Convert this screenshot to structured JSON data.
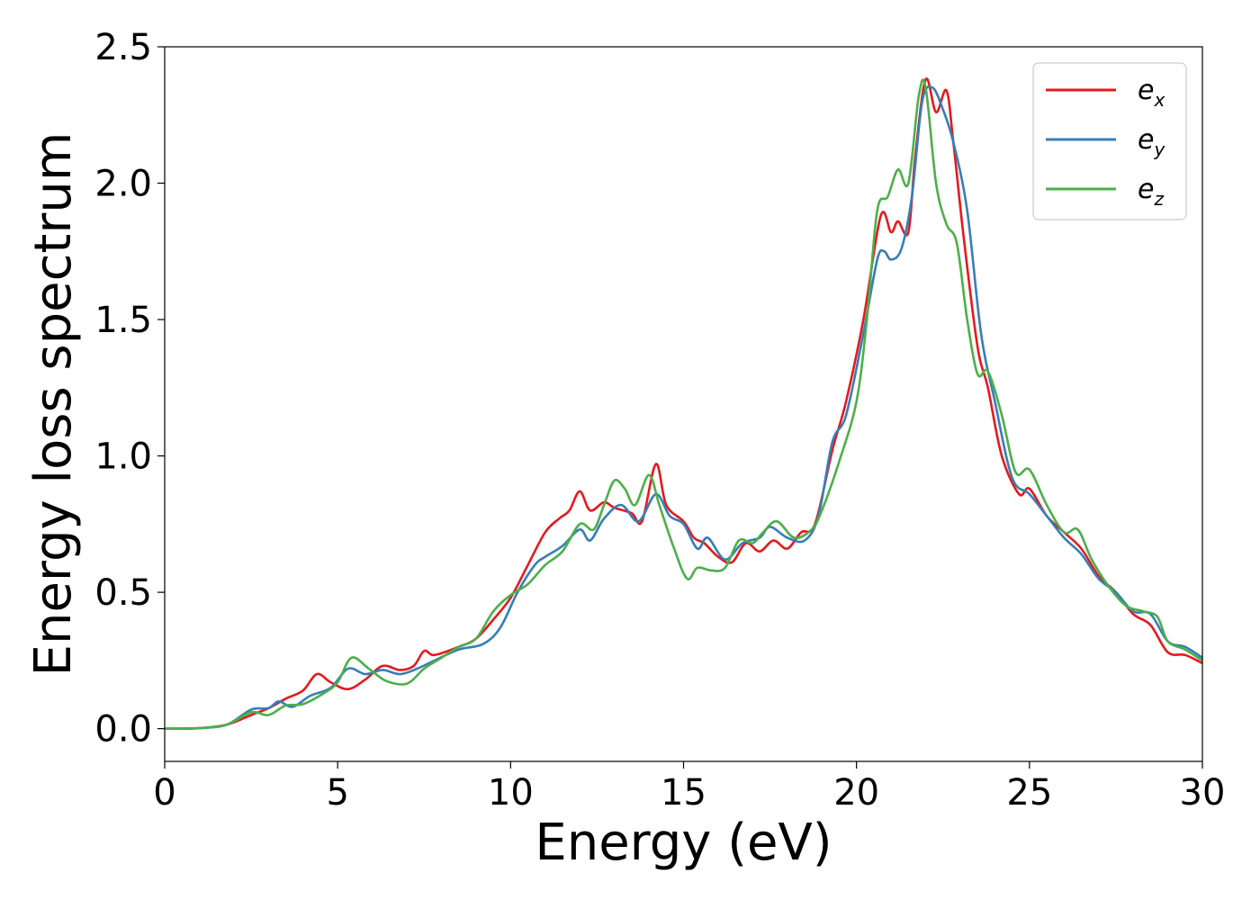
{
  "chart_data": {
    "type": "line",
    "xlabel": "Energy (eV)",
    "ylabel": "Energy loss spectrum",
    "xlim": [
      0,
      30
    ],
    "ylim": [
      -0.12,
      2.5
    ],
    "xticks": [
      0,
      5,
      10,
      15,
      20,
      25,
      30
    ],
    "xtick_labels": [
      "0",
      "5",
      "10",
      "15",
      "20",
      "25",
      "30"
    ],
    "yticks": [
      0.0,
      0.5,
      1.0,
      1.5,
      2.0,
      2.5
    ],
    "ytick_labels": [
      "0.0",
      "0.5",
      "1.0",
      "1.5",
      "2.0",
      "2.5"
    ],
    "grid": false,
    "legend_position": "top-right",
    "series": [
      {
        "name": "e_x",
        "legend_base": "e",
        "legend_sub": "x",
        "color": "#e41a1c",
        "points": [
          [
            0,
            0
          ],
          [
            1,
            0.002
          ],
          [
            1.8,
            0.015
          ],
          [
            2.5,
            0.05
          ],
          [
            3,
            0.075
          ],
          [
            3.5,
            0.11
          ],
          [
            4,
            0.14
          ],
          [
            4.4,
            0.2
          ],
          [
            4.8,
            0.17
          ],
          [
            5.3,
            0.145
          ],
          [
            5.8,
            0.18
          ],
          [
            6.3,
            0.23
          ],
          [
            6.8,
            0.215
          ],
          [
            7.2,
            0.23
          ],
          [
            7.5,
            0.285
          ],
          [
            7.8,
            0.27
          ],
          [
            8.5,
            0.3
          ],
          [
            9,
            0.33
          ],
          [
            9.5,
            0.4
          ],
          [
            10,
            0.48
          ],
          [
            10.5,
            0.6
          ],
          [
            11,
            0.72
          ],
          [
            11.4,
            0.77
          ],
          [
            11.7,
            0.8
          ],
          [
            12,
            0.87
          ],
          [
            12.3,
            0.8
          ],
          [
            12.7,
            0.83
          ],
          [
            13,
            0.81
          ],
          [
            13.5,
            0.79
          ],
          [
            13.8,
            0.76
          ],
          [
            14.2,
            0.97
          ],
          [
            14.5,
            0.82
          ],
          [
            15,
            0.76
          ],
          [
            15.3,
            0.7
          ],
          [
            15.6,
            0.68
          ],
          [
            16,
            0.63
          ],
          [
            16.4,
            0.61
          ],
          [
            16.8,
            0.68
          ],
          [
            17.2,
            0.65
          ],
          [
            17.6,
            0.69
          ],
          [
            18,
            0.66
          ],
          [
            18.4,
            0.72
          ],
          [
            18.8,
            0.75
          ],
          [
            19.3,
            1.02
          ],
          [
            19.7,
            1.2
          ],
          [
            20.2,
            1.5
          ],
          [
            20.7,
            1.88
          ],
          [
            21,
            1.82
          ],
          [
            21.2,
            1.86
          ],
          [
            21.5,
            1.82
          ],
          [
            21.7,
            2.1
          ],
          [
            22,
            2.38
          ],
          [
            22.3,
            2.26
          ],
          [
            22.6,
            2.34
          ],
          [
            22.8,
            2.15
          ],
          [
            23.1,
            1.8
          ],
          [
            23.5,
            1.4
          ],
          [
            23.8,
            1.25
          ],
          [
            24.2,
            1.0
          ],
          [
            24.7,
            0.86
          ],
          [
            25,
            0.88
          ],
          [
            25.5,
            0.78
          ],
          [
            26,
            0.72
          ],
          [
            26.5,
            0.66
          ],
          [
            27,
            0.56
          ],
          [
            27.5,
            0.5
          ],
          [
            28,
            0.42
          ],
          [
            28.5,
            0.38
          ],
          [
            29,
            0.28
          ],
          [
            29.5,
            0.27
          ],
          [
            30,
            0.24
          ]
        ]
      },
      {
        "name": "e_y",
        "legend_base": "e",
        "legend_sub": "y",
        "color": "#377eb8",
        "points": [
          [
            0,
            0
          ],
          [
            1,
            0.002
          ],
          [
            1.8,
            0.015
          ],
          [
            2.5,
            0.07
          ],
          [
            3,
            0.075
          ],
          [
            3.3,
            0.1
          ],
          [
            3.7,
            0.08
          ],
          [
            4.2,
            0.12
          ],
          [
            4.8,
            0.15
          ],
          [
            5.3,
            0.22
          ],
          [
            5.8,
            0.2
          ],
          [
            6.3,
            0.215
          ],
          [
            6.8,
            0.2
          ],
          [
            7.3,
            0.22
          ],
          [
            7.8,
            0.25
          ],
          [
            8.5,
            0.29
          ],
          [
            9.2,
            0.31
          ],
          [
            9.7,
            0.37
          ],
          [
            10.2,
            0.5
          ],
          [
            10.7,
            0.6
          ],
          [
            11,
            0.63
          ],
          [
            11.5,
            0.67
          ],
          [
            12,
            0.73
          ],
          [
            12.3,
            0.69
          ],
          [
            12.7,
            0.77
          ],
          [
            13.2,
            0.82
          ],
          [
            13.7,
            0.76
          ],
          [
            14.2,
            0.86
          ],
          [
            14.6,
            0.78
          ],
          [
            15,
            0.75
          ],
          [
            15.4,
            0.66
          ],
          [
            15.7,
            0.7
          ],
          [
            16.2,
            0.62
          ],
          [
            16.7,
            0.68
          ],
          [
            17.2,
            0.7
          ],
          [
            17.5,
            0.74
          ],
          [
            18,
            0.7
          ],
          [
            18.5,
            0.69
          ],
          [
            18.9,
            0.78
          ],
          [
            19.3,
            1.05
          ],
          [
            19.7,
            1.15
          ],
          [
            20.2,
            1.45
          ],
          [
            20.6,
            1.72
          ],
          [
            20.8,
            1.75
          ],
          [
            21,
            1.72
          ],
          [
            21.3,
            1.76
          ],
          [
            21.6,
            1.95
          ],
          [
            21.9,
            2.3
          ],
          [
            22.2,
            2.35
          ],
          [
            22.5,
            2.27
          ],
          [
            22.8,
            2.15
          ],
          [
            23.2,
            1.9
          ],
          [
            23.6,
            1.45
          ],
          [
            24,
            1.2
          ],
          [
            24.5,
            0.92
          ],
          [
            25,
            0.86
          ],
          [
            25.5,
            0.78
          ],
          [
            26,
            0.7
          ],
          [
            26.5,
            0.64
          ],
          [
            27,
            0.55
          ],
          [
            27.5,
            0.5
          ],
          [
            28,
            0.43
          ],
          [
            28.5,
            0.42
          ],
          [
            29,
            0.32
          ],
          [
            29.5,
            0.3
          ],
          [
            30,
            0.26
          ]
        ]
      },
      {
        "name": "e_z",
        "legend_base": "e",
        "legend_sub": "z",
        "color": "#4daf4a",
        "points": [
          [
            0,
            0
          ],
          [
            1,
            0.002
          ],
          [
            1.8,
            0.015
          ],
          [
            2.5,
            0.06
          ],
          [
            3,
            0.05
          ],
          [
            3.5,
            0.085
          ],
          [
            4,
            0.09
          ],
          [
            4.6,
            0.13
          ],
          [
            5,
            0.17
          ],
          [
            5.4,
            0.26
          ],
          [
            5.9,
            0.22
          ],
          [
            6.4,
            0.175
          ],
          [
            7,
            0.165
          ],
          [
            7.5,
            0.22
          ],
          [
            8,
            0.26
          ],
          [
            8.5,
            0.3
          ],
          [
            9,
            0.33
          ],
          [
            9.5,
            0.43
          ],
          [
            10,
            0.49
          ],
          [
            10.5,
            0.53
          ],
          [
            11,
            0.6
          ],
          [
            11.5,
            0.65
          ],
          [
            12,
            0.75
          ],
          [
            12.4,
            0.73
          ],
          [
            12.7,
            0.82
          ],
          [
            13,
            0.91
          ],
          [
            13.3,
            0.88
          ],
          [
            13.6,
            0.82
          ],
          [
            14,
            0.93
          ],
          [
            14.3,
            0.82
          ],
          [
            14.7,
            0.67
          ],
          [
            15.1,
            0.55
          ],
          [
            15.4,
            0.59
          ],
          [
            15.8,
            0.58
          ],
          [
            16.2,
            0.59
          ],
          [
            16.6,
            0.69
          ],
          [
            17,
            0.68
          ],
          [
            17.3,
            0.72
          ],
          [
            17.7,
            0.76
          ],
          [
            18.2,
            0.7
          ],
          [
            18.7,
            0.73
          ],
          [
            19,
            0.8
          ],
          [
            19.5,
            0.98
          ],
          [
            20,
            1.2
          ],
          [
            20.3,
            1.5
          ],
          [
            20.6,
            1.9
          ],
          [
            20.9,
            1.95
          ],
          [
            21.2,
            2.05
          ],
          [
            21.5,
            2.0
          ],
          [
            21.8,
            2.32
          ],
          [
            22,
            2.35
          ],
          [
            22.3,
            2.0
          ],
          [
            22.6,
            1.85
          ],
          [
            22.9,
            1.78
          ],
          [
            23.2,
            1.5
          ],
          [
            23.5,
            1.3
          ],
          [
            23.8,
            1.31
          ],
          [
            24.2,
            1.15
          ],
          [
            24.6,
            0.94
          ],
          [
            25,
            0.95
          ],
          [
            25.5,
            0.82
          ],
          [
            26,
            0.72
          ],
          [
            26.4,
            0.73
          ],
          [
            26.8,
            0.62
          ],
          [
            27.3,
            0.52
          ],
          [
            27.8,
            0.45
          ],
          [
            28.3,
            0.43
          ],
          [
            28.7,
            0.41
          ],
          [
            29,
            0.32
          ],
          [
            29.5,
            0.29
          ],
          [
            30,
            0.25
          ]
        ]
      }
    ]
  }
}
